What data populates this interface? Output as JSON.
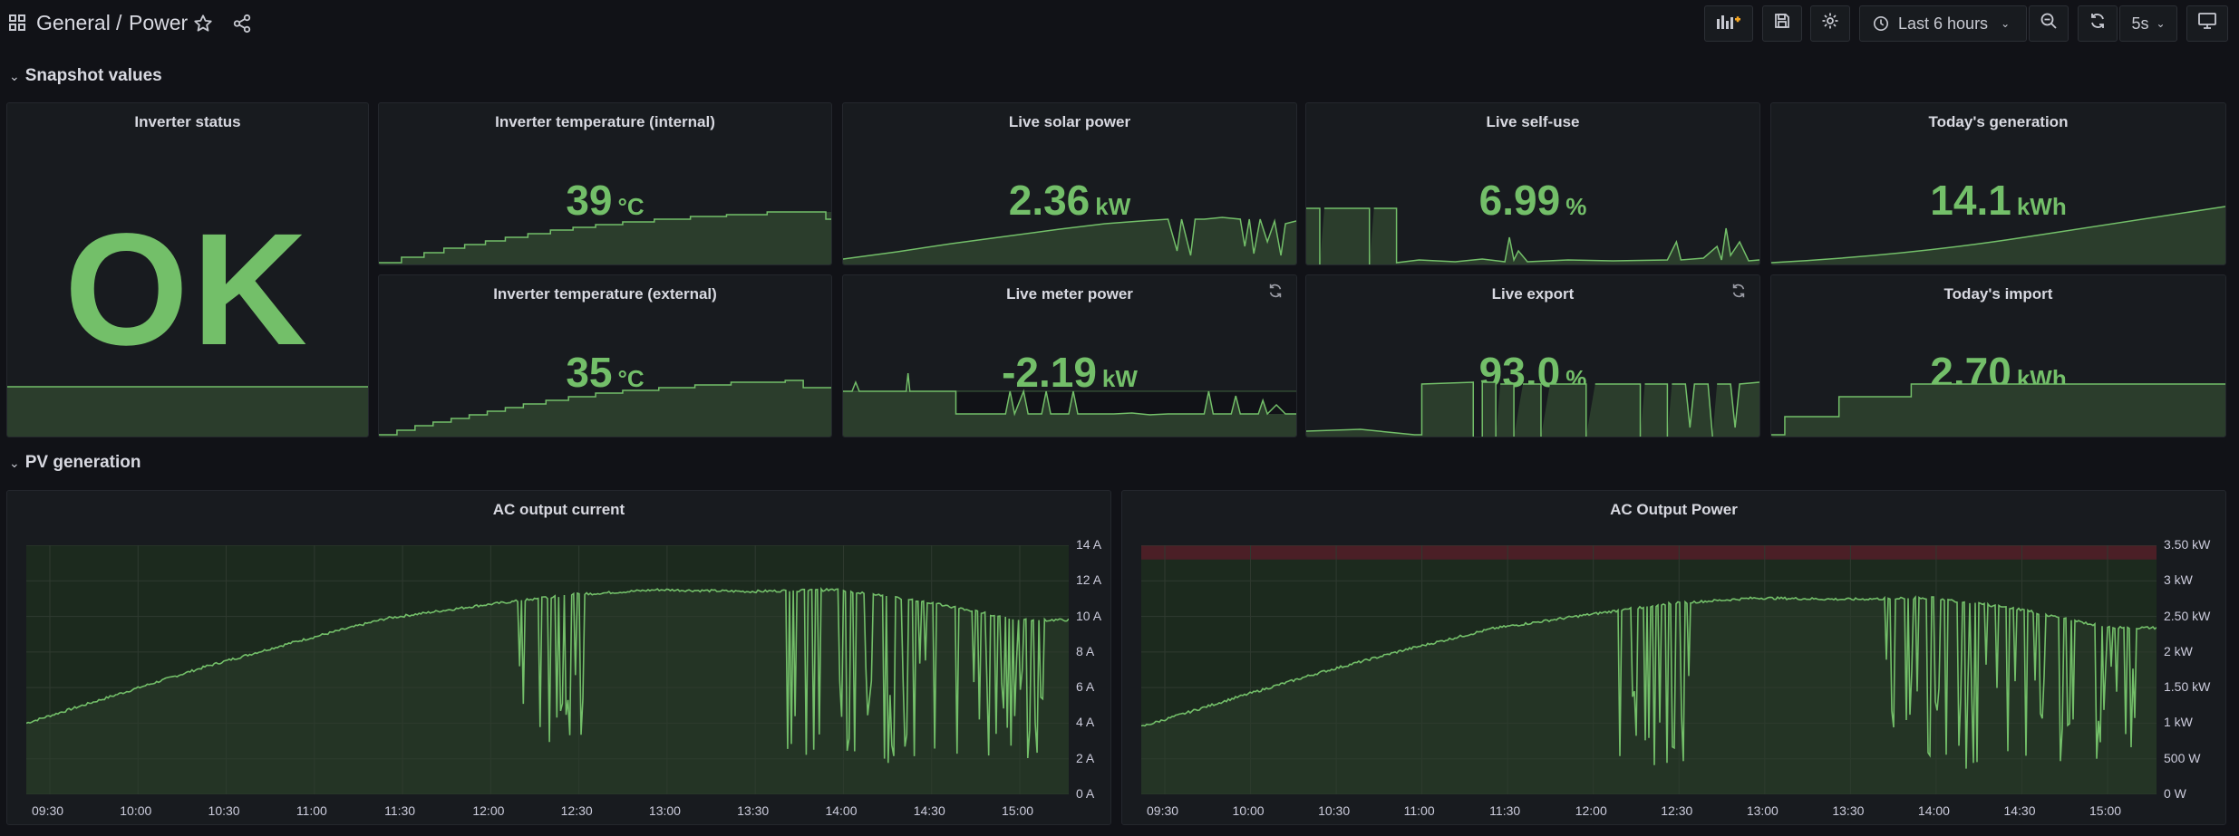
{
  "header": {
    "folder": "General",
    "separator": "/",
    "dashboard": "Power",
    "time_range": "Last 6 hours",
    "refresh_interval": "5s"
  },
  "rows": {
    "snapshot": "Snapshot values",
    "pv": "PV generation"
  },
  "panels": {
    "inverter_status": {
      "title": "Inverter status",
      "value": "OK"
    },
    "temp_internal": {
      "title": "Inverter temperature (internal)",
      "value": "39",
      "unit": "°C"
    },
    "solar_power": {
      "title": "Live solar power",
      "value": "2.36",
      "unit": "kW"
    },
    "self_use": {
      "title": "Live self-use",
      "value": "6.99",
      "unit": "%"
    },
    "todays_generation": {
      "title": "Today's generation",
      "value": "14.1",
      "unit": "kWh"
    },
    "temp_external": {
      "title": "Inverter temperature (external)",
      "value": "35",
      "unit": "°C"
    },
    "meter_power": {
      "title": "Live meter power",
      "value": "-2.19",
      "unit": "kW"
    },
    "live_export": {
      "title": "Live export",
      "value": "93.0",
      "unit": "%"
    },
    "todays_import": {
      "title": "Today's import",
      "value": "2.70",
      "unit": "kWh"
    }
  },
  "colors": {
    "green": "#73bf69",
    "fill": "#2b3d2c",
    "threshold_red": "#4b1f26",
    "background": "#111217",
    "panel": "#181b1f"
  },
  "icons": {
    "apps": "grid-icon",
    "star": "star-icon",
    "share": "share-icon",
    "add_panel": "add-panel-icon",
    "save": "save-icon",
    "settings": "gear-icon",
    "clock": "clock-icon",
    "zoom_out": "zoom-out-icon",
    "refresh": "refresh-icon",
    "tv": "tv-mode-icon"
  },
  "chart_data": [
    {
      "type": "line",
      "title": "AC output current",
      "x": [
        "09:30",
        "10:00",
        "10:30",
        "11:00",
        "11:30",
        "12:00",
        "12:30",
        "13:00",
        "13:30",
        "14:00",
        "14:30",
        "15:00"
      ],
      "y_ticks": [
        "0 A",
        "2 A",
        "4 A",
        "6 A",
        "8 A",
        "10 A",
        "12 A",
        "14 A"
      ],
      "ylim": [
        0,
        14
      ],
      "series": [
        {
          "values": [
            4.0,
            5.6,
            7.2,
            8.6,
            9.9,
            10.6,
            11.2,
            11.5,
            11.4,
            11.5,
            10.8,
            9.8
          ]
        }
      ],
      "grid": true
    },
    {
      "type": "line",
      "title": "AC Output Power",
      "x": [
        "09:30",
        "10:00",
        "10:30",
        "11:00",
        "11:30",
        "12:00",
        "12:30",
        "13:00",
        "13:30",
        "14:00",
        "14:30",
        "15:00"
      ],
      "y_ticks": [
        "0 W",
        "500 W",
        "1 kW",
        "1.50 kW",
        "2 kW",
        "2.50 kW",
        "3 kW",
        "3.50 kW"
      ],
      "ylim": [
        0,
        3500
      ],
      "threshold": 3300,
      "series": [
        {
          "values": [
            950,
            1330,
            1700,
            2030,
            2330,
            2510,
            2680,
            2760,
            2740,
            2760,
            2600,
            2340
          ]
        }
      ],
      "grid": true
    }
  ]
}
